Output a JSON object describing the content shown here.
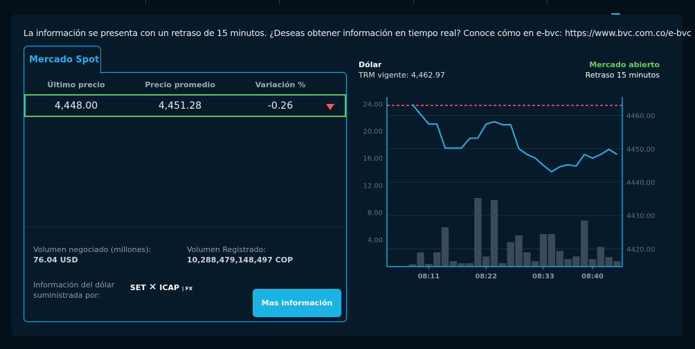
{
  "notice": "La información se presenta con un retraso de 15 minutos. ¿Deseas obtener información en tiempo real? Conoce cómo en e-bvc: https://www.bvc.com.co/e-bvc",
  "tab": "Mercado Spot",
  "table": {
    "headers": [
      "Último precio",
      "Precio promedio",
      "Variación %"
    ],
    "row": {
      "last": "4,448.00",
      "avg": "4,451.28",
      "var": "-0.26",
      "trend_icon": "triangle-down-icon",
      "trend_color": "#ef5a5a"
    }
  },
  "volume": {
    "label": "Volumen negociado (millones):",
    "value": "76.04 USD"
  },
  "registered": {
    "label": "Volumen Registrado:",
    "value": "10,288,479,148,497 COP"
  },
  "provider": {
    "label1": "Información del dólar",
    "label2": "suministrada por:",
    "logo_text": "SET ICAP | FX"
  },
  "button": "Mas información",
  "chart_header": {
    "title": "Dólar",
    "trm": "TRM vigente: 4,462.97",
    "status": "Mercado abierto",
    "delay": "Retraso 15 minutos",
    "status_color": "#5fd05f"
  },
  "chart_data": {
    "type": "bar+line",
    "left_axis": {
      "ticks": [
        "4.00",
        "8.00",
        "12.00",
        "16.00",
        "20.00",
        "24.00"
      ],
      "range": [
        0,
        25
      ]
    },
    "right_axis": {
      "ticks": [
        "4420.00",
        "4430.00",
        "4440.00",
        "4450.00",
        "4460.00"
      ],
      "range": [
        4414.7,
        4465.5
      ]
    },
    "x_ticks": [
      {
        "index": 2,
        "label": "08:11"
      },
      {
        "index": 9,
        "label": "08:22"
      },
      {
        "index": 16,
        "label": "08:33"
      },
      {
        "index": 22,
        "label": "08:40"
      }
    ],
    "volume": [
      0.35,
      2.1,
      0.4,
      2.1,
      5.8,
      0.8,
      0.5,
      0.5,
      10.1,
      1.5,
      9.8,
      0.5,
      3.6,
      4.6,
      2.1,
      0.8,
      4.8,
      4.8,
      2.3,
      1.1,
      1.5,
      6.8,
      1.1,
      2.9,
      1.4,
      0.8
    ],
    "price": [
      4463.3,
      4460.3,
      4457.4,
      4457.4,
      4450.2,
      4450.2,
      4450.2,
      4453.1,
      4453.2,
      4457.4,
      4458.1,
      4457.2,
      4457.2,
      4450.0,
      4448.3,
      4447.2,
      4445.0,
      4443.1,
      4444.6,
      4445.2,
      4444.8,
      4448.3,
      4447.2,
      4448.3,
      4449.8,
      4448.3
    ],
    "reference_line": 4462.97,
    "colors": {
      "bars": "#3a4a58",
      "line": "#1fb2e5",
      "reference": "#e0607a",
      "axis": "#1fa6d4"
    }
  }
}
